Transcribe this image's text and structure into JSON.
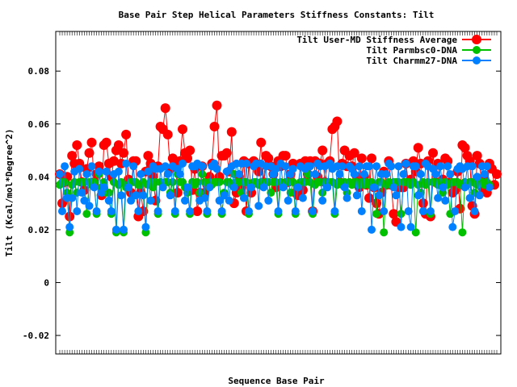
{
  "chart_data": {
    "type": "line",
    "title": "Base Pair Step Helical Parameters Stiffness Constants: Tilt",
    "xlabel": "Sequence Base Pair",
    "ylabel": "Tilt (Kcal/mol*Degree^2)",
    "ylim": [
      -0.027,
      0.095
    ],
    "y_ticks": [
      -0.02,
      0,
      0.02,
      0.04,
      0.06,
      0.08
    ],
    "y_tick_labels": [
      "-0.02",
      "0",
      "0.02",
      "0.04",
      "0.06",
      "0.08"
    ],
    "legend_position": "top-right",
    "grid": false,
    "series": [
      {
        "name": "Tilt User-MD Stiffness Average",
        "color": "#ff0000",
        "values": [
          0.041,
          0.03,
          0.038,
          0.04,
          0.025,
          0.048,
          0.045,
          0.052,
          0.045,
          0.038,
          0.035,
          0.043,
          0.049,
          0.053,
          0.038,
          0.041,
          0.044,
          0.033,
          0.052,
          0.053,
          0.045,
          0.04,
          0.046,
          0.05,
          0.052,
          0.045,
          0.049,
          0.056,
          0.039,
          0.034,
          0.046,
          0.046,
          0.025,
          0.034,
          0.027,
          0.042,
          0.048,
          0.045,
          0.04,
          0.031,
          0.044,
          0.059,
          0.058,
          0.066,
          0.056,
          0.043,
          0.047,
          0.046,
          0.034,
          0.046,
          0.058,
          0.049,
          0.047,
          0.05,
          0.035,
          0.043,
          0.027,
          0.034,
          0.044,
          0.034,
          0.037,
          0.04,
          0.045,
          0.059,
          0.067,
          0.04,
          0.048,
          0.048,
          0.049,
          0.042,
          0.057,
          0.03,
          0.034,
          0.04,
          0.036,
          0.046,
          0.027,
          0.045,
          0.034,
          0.046,
          0.045,
          0.042,
          0.053,
          0.038,
          0.048,
          0.047,
          0.044,
          0.041,
          0.036,
          0.046,
          0.044,
          0.048,
          0.048,
          0.038,
          0.041,
          0.045,
          0.034,
          0.033,
          0.045,
          0.035,
          0.046,
          0.041,
          0.046,
          0.027,
          0.046,
          0.04,
          0.045,
          0.05,
          0.038,
          0.045,
          0.046,
          0.058,
          0.059,
          0.061,
          0.038,
          0.045,
          0.05,
          0.044,
          0.048,
          0.044,
          0.049,
          0.04,
          0.036,
          0.047,
          0.04,
          0.037,
          0.032,
          0.047,
          0.036,
          0.03,
          0.026,
          0.034,
          0.042,
          0.037,
          0.046,
          0.037,
          0.026,
          0.023,
          0.036,
          0.036,
          0.036,
          0.045,
          0.038,
          0.039,
          0.046,
          0.042,
          0.051,
          0.045,
          0.03,
          0.026,
          0.046,
          0.025,
          0.049,
          0.038,
          0.045,
          0.038,
          0.039,
          0.047,
          0.046,
          0.038,
          0.034,
          0.035,
          0.042,
          0.028,
          0.052,
          0.051,
          0.048,
          0.046,
          0.029,
          0.026,
          0.048,
          0.045,
          0.036,
          0.039,
          0.034,
          0.045,
          0.043,
          0.037,
          0.041
        ]
      },
      {
        "name": "Tilt Parmbsc0-DNA",
        "color": "#00c000",
        "values": [
          0.037,
          0.038,
          0.038,
          0.034,
          0.019,
          0.037,
          0.038,
          0.034,
          0.038,
          0.038,
          0.038,
          0.026,
          0.038,
          0.037,
          0.038,
          0.026,
          0.041,
          0.036,
          0.038,
          0.034,
          0.034,
          0.026,
          0.038,
          0.019,
          0.037,
          0.038,
          0.019,
          0.036,
          0.037,
          0.038,
          0.038,
          0.038,
          0.037,
          0.037,
          0.038,
          0.019,
          0.037,
          0.038,
          0.036,
          0.038,
          0.026,
          0.038,
          0.037,
          0.038,
          0.038,
          0.034,
          0.038,
          0.026,
          0.041,
          0.038,
          0.038,
          0.036,
          0.034,
          0.026,
          0.038,
          0.037,
          0.038,
          0.034,
          0.041,
          0.038,
          0.026,
          0.038,
          0.037,
          0.038,
          0.038,
          0.038,
          0.026,
          0.034,
          0.038,
          0.038,
          0.037,
          0.041,
          0.038,
          0.038,
          0.034,
          0.038,
          0.038,
          0.026,
          0.037,
          0.038,
          0.038,
          0.037,
          0.038,
          0.037,
          0.038,
          0.038,
          0.034,
          0.038,
          0.038,
          0.026,
          0.038,
          0.037,
          0.038,
          0.038,
          0.034,
          0.038,
          0.026,
          0.037,
          0.038,
          0.038,
          0.038,
          0.041,
          0.038,
          0.026,
          0.037,
          0.038,
          0.038,
          0.034,
          0.038,
          0.037,
          0.038,
          0.038,
          0.026,
          0.037,
          0.038,
          0.037,
          0.038,
          0.034,
          0.038,
          0.037,
          0.038,
          0.038,
          0.037,
          0.038,
          0.037,
          0.038,
          0.037,
          0.038,
          0.037,
          0.026,
          0.038,
          0.038,
          0.019,
          0.037,
          0.038,
          0.037,
          0.038,
          0.038,
          0.038,
          0.026,
          0.038,
          0.038,
          0.038,
          0.037,
          0.038,
          0.019,
          0.037,
          0.034,
          0.038,
          0.037,
          0.038,
          0.026,
          0.038,
          0.038,
          0.037,
          0.038,
          0.034,
          0.038,
          0.037,
          0.026,
          0.038,
          0.038,
          0.038,
          0.037,
          0.019,
          0.038,
          0.037,
          0.038,
          0.038,
          0.034,
          0.037,
          0.038,
          0.038,
          0.037,
          0.038,
          0.037
        ]
      },
      {
        "name": "Tilt Charmm27-DNA",
        "color": "#0080ff",
        "values": [
          0.041,
          0.027,
          0.044,
          0.032,
          0.021,
          0.032,
          0.042,
          0.027,
          0.043,
          0.034,
          0.031,
          0.041,
          0.029,
          0.044,
          0.036,
          0.027,
          0.042,
          0.034,
          0.036,
          0.042,
          0.031,
          0.027,
          0.041,
          0.02,
          0.042,
          0.033,
          0.02,
          0.045,
          0.036,
          0.031,
          0.044,
          0.033,
          0.027,
          0.041,
          0.033,
          0.021,
          0.042,
          0.031,
          0.044,
          0.043,
          0.027,
          0.043,
          0.036,
          0.044,
          0.041,
          0.033,
          0.044,
          0.027,
          0.043,
          0.041,
          0.045,
          0.031,
          0.036,
          0.027,
          0.044,
          0.044,
          0.045,
          0.031,
          0.044,
          0.032,
          0.027,
          0.036,
          0.044,
          0.045,
          0.043,
          0.031,
          0.027,
          0.033,
          0.042,
          0.031,
          0.044,
          0.036,
          0.045,
          0.041,
          0.045,
          0.032,
          0.045,
          0.027,
          0.036,
          0.044,
          0.045,
          0.029,
          0.045,
          0.036,
          0.044,
          0.031,
          0.044,
          0.041,
          0.043,
          0.027,
          0.045,
          0.036,
          0.044,
          0.031,
          0.041,
          0.043,
          0.027,
          0.036,
          0.044,
          0.032,
          0.043,
          0.044,
          0.044,
          0.027,
          0.041,
          0.045,
          0.044,
          0.031,
          0.044,
          0.036,
          0.045,
          0.043,
          0.027,
          0.044,
          0.041,
          0.044,
          0.036,
          0.032,
          0.044,
          0.043,
          0.041,
          0.033,
          0.044,
          0.027,
          0.041,
          0.044,
          0.044,
          0.02,
          0.036,
          0.044,
          0.033,
          0.041,
          0.027,
          0.041,
          0.045,
          0.044,
          0.036,
          0.033,
          0.044,
          0.021,
          0.041,
          0.045,
          0.027,
          0.021,
          0.044,
          0.044,
          0.033,
          0.041,
          0.027,
          0.045,
          0.044,
          0.027,
          0.043,
          0.041,
          0.032,
          0.044,
          0.036,
          0.031,
          0.044,
          0.041,
          0.021,
          0.027,
          0.043,
          0.044,
          0.043,
          0.036,
          0.044,
          0.032,
          0.044,
          0.027,
          0.04,
          0.033,
          0.044,
          0.041,
          0.044,
          0.036
        ]
      }
    ]
  }
}
